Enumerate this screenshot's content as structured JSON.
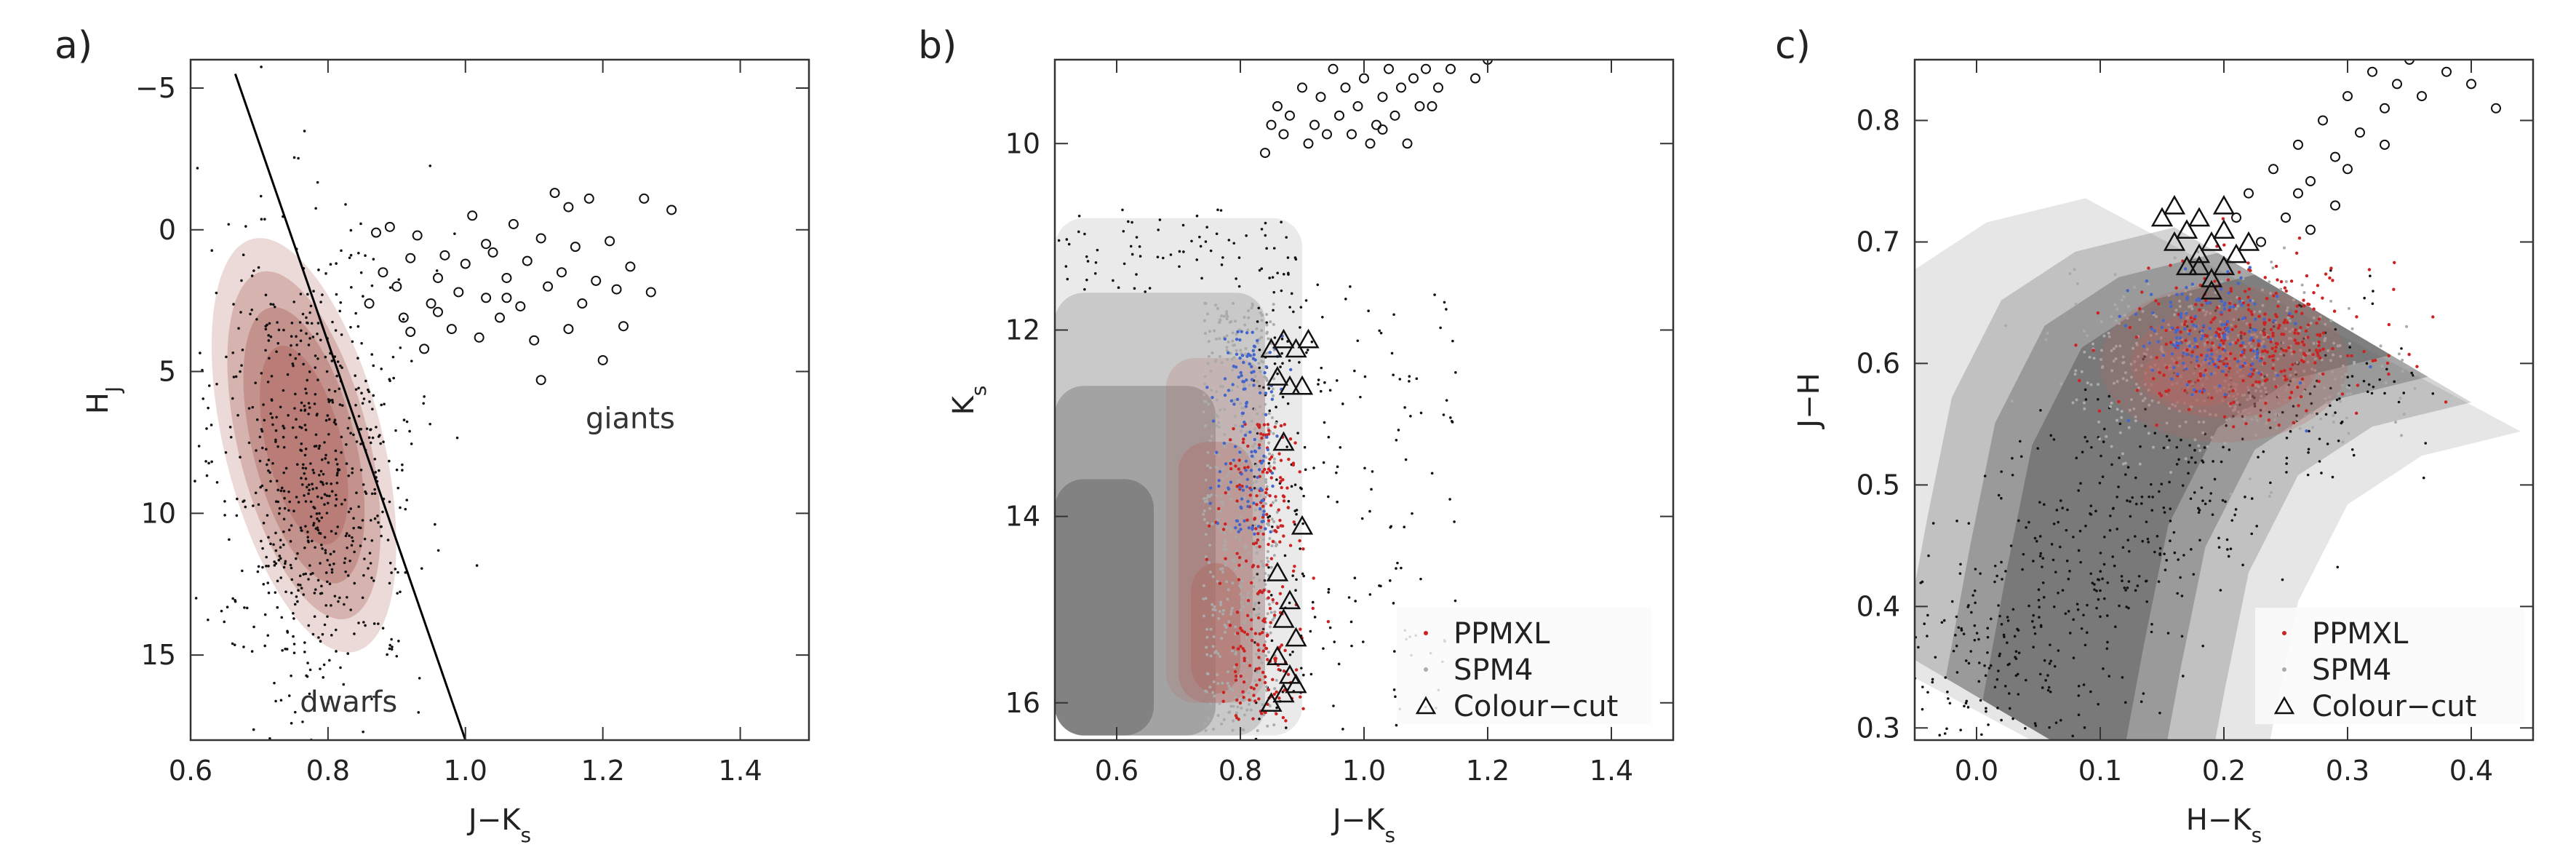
{
  "chart_data": [
    {
      "panel": "a)",
      "type": "scatter",
      "xlabel": "J−K",
      "xlabel_sub": "s",
      "ylabel": "H",
      "ylabel_sub": "J",
      "xlim": [
        0.6,
        1.5
      ],
      "ylim": [
        18,
        -6
      ],
      "y_inverted": true,
      "xticks": [
        0.6,
        0.8,
        1.0,
        1.2,
        1.4
      ],
      "xtick_labels": [
        "0.6",
        "0.8",
        "1.0",
        "1.2",
        "1.4"
      ],
      "yticks": [
        -5,
        0,
        5,
        10,
        15
      ],
      "ytick_labels": [
        "−5",
        "0",
        "5",
        "10",
        "15"
      ],
      "annotations": [
        {
          "text": "giants",
          "x": 1.24,
          "y": 7.0
        },
        {
          "text": "dwarfs",
          "x": 0.83,
          "y": 17.0
        }
      ],
      "dividing_line": {
        "x": [
          0.665,
          1.0
        ],
        "y": [
          -5.5,
          18.0
        ]
      },
      "contours": {
        "color": "#b06a64",
        "levels": [
          {
            "cx": 0.765,
            "cy": 7.6,
            "rx": 0.115,
            "ry": 7.5,
            "opacity": 0.25
          },
          {
            "cx": 0.765,
            "cy": 7.6,
            "rx": 0.095,
            "ry": 6.3,
            "opacity": 0.35
          },
          {
            "cx": 0.765,
            "cy": 7.6,
            "rx": 0.075,
            "ry": 5.0,
            "opacity": 0.45
          },
          {
            "cx": 0.765,
            "cy": 7.6,
            "rx": 0.055,
            "ry": 3.6,
            "opacity": 0.55
          }
        ]
      },
      "giants_points": [
        [
          0.86,
          2.6
        ],
        [
          0.87,
          0.1
        ],
        [
          0.88,
          1.5
        ],
        [
          0.89,
          -0.1
        ],
        [
          0.9,
          2.0
        ],
        [
          0.91,
          3.1
        ],
        [
          0.92,
          1.0
        ],
        [
          0.93,
          0.2
        ],
        [
          0.94,
          4.2
        ],
        [
          0.95,
          2.6
        ],
        [
          0.96,
          1.7
        ],
        [
          0.97,
          0.9
        ],
        [
          0.98,
          3.5
        ],
        [
          0.99,
          2.2
        ],
        [
          1.0,
          1.2
        ],
        [
          1.01,
          -0.5
        ],
        [
          1.02,
          3.8
        ],
        [
          1.03,
          2.4
        ],
        [
          1.04,
          0.8
        ],
        [
          1.05,
          3.1
        ],
        [
          1.06,
          1.7
        ],
        [
          1.07,
          -0.2
        ],
        [
          1.08,
          2.7
        ],
        [
          1.09,
          1.1
        ],
        [
          1.1,
          3.9
        ],
        [
          1.11,
          0.3
        ],
        [
          1.12,
          2.0
        ],
        [
          1.13,
          -1.3
        ],
        [
          1.14,
          1.5
        ],
        [
          1.15,
          3.5
        ],
        [
          1.16,
          0.6
        ],
        [
          1.17,
          2.6
        ],
        [
          1.18,
          -1.1
        ],
        [
          1.19,
          1.8
        ],
        [
          1.2,
          4.6
        ],
        [
          1.21,
          0.4
        ],
        [
          1.22,
          2.1
        ],
        [
          1.24,
          1.3
        ],
        [
          1.26,
          -1.1
        ],
        [
          1.27,
          2.2
        ],
        [
          1.3,
          -0.7
        ],
        [
          1.11,
          5.3
        ],
        [
          0.96,
          2.9
        ],
        [
          1.03,
          0.5
        ],
        [
          0.92,
          3.6
        ],
        [
          1.15,
          -0.8
        ],
        [
          1.06,
          2.4
        ],
        [
          1.23,
          3.4
        ]
      ]
    },
    {
      "panel": "b)",
      "type": "scatter",
      "xlabel": "J−K",
      "xlabel_sub": "s",
      "ylabel": "K",
      "ylabel_sub": "s",
      "xlim": [
        0.5,
        1.5
      ],
      "ylim": [
        16.4,
        9.1
      ],
      "y_inverted": true,
      "xticks": [
        0.6,
        0.8,
        1.0,
        1.2,
        1.4
      ],
      "xtick_labels": [
        "0.6",
        "0.8",
        "1.0",
        "1.2",
        "1.4"
      ],
      "yticks": [
        10,
        12,
        14,
        16
      ],
      "ytick_labels": [
        "10",
        "12",
        "14",
        "16"
      ],
      "legend": [
        {
          "label": "PPMXL",
          "marker": "dot",
          "color": "#cc2222"
        },
        {
          "label": "SPM4",
          "marker": "dot",
          "color": "#aaaaaa"
        },
        {
          "label": "Colour−cut",
          "marker": "triangle",
          "color": "#111111"
        }
      ],
      "grey_contours": {
        "color": "#555555",
        "levels": [
          {
            "x0": 0.5,
            "x1": 0.9,
            "y0": 10.8,
            "y1": 16.35,
            "opacity": 0.12
          },
          {
            "x0": 0.5,
            "x1": 0.84,
            "y0": 11.6,
            "y1": 16.35,
            "opacity": 0.22
          },
          {
            "x0": 0.5,
            "x1": 0.76,
            "y0": 12.6,
            "y1": 16.35,
            "opacity": 0.32
          },
          {
            "x0": 0.5,
            "x1": 0.66,
            "y0": 13.6,
            "y1": 16.35,
            "opacity": 0.42
          }
        ]
      },
      "red_contours": {
        "color": "#b06a64",
        "levels": [
          {
            "x0": 0.68,
            "x1": 0.84,
            "y0": 12.3,
            "y1": 16.0,
            "opacity": 0.22
          },
          {
            "x0": 0.7,
            "x1": 0.82,
            "y0": 13.2,
            "y1": 16.0,
            "opacity": 0.35
          },
          {
            "x0": 0.72,
            "x1": 0.8,
            "y0": 14.5,
            "y1": 15.9,
            "opacity": 0.5
          }
        ]
      },
      "giants_points": [
        [
          0.86,
          9.6
        ],
        [
          0.87,
          9.9
        ],
        [
          0.88,
          9.7
        ],
        [
          0.9,
          9.4
        ],
        [
          0.91,
          10.0
        ],
        [
          0.92,
          9.8
        ],
        [
          0.93,
          9.5
        ],
        [
          0.94,
          9.9
        ],
        [
          0.95,
          9.2
        ],
        [
          0.96,
          9.7
        ],
        [
          0.97,
          9.4
        ],
        [
          0.98,
          9.9
        ],
        [
          0.99,
          9.6
        ],
        [
          1.0,
          9.3
        ],
        [
          1.01,
          10.0
        ],
        [
          1.02,
          9.8
        ],
        [
          1.03,
          9.5
        ],
        [
          1.04,
          9.2
        ],
        [
          1.05,
          9.7
        ],
        [
          1.06,
          9.4
        ],
        [
          1.07,
          10.0
        ],
        [
          1.08,
          9.3
        ],
        [
          1.09,
          9.6
        ],
        [
          1.1,
          9.2
        ],
        [
          1.12,
          9.4
        ],
        [
          1.14,
          9.2
        ],
        [
          1.18,
          9.3
        ],
        [
          0.84,
          10.1
        ],
        [
          0.85,
          9.8
        ],
        [
          1.03,
          9.85
        ],
        [
          1.11,
          9.6
        ],
        [
          1.2,
          9.1
        ]
      ],
      "colour_cut_points": [
        [
          0.85,
          12.2
        ],
        [
          0.87,
          12.1
        ],
        [
          0.89,
          12.2
        ],
        [
          0.91,
          12.1
        ],
        [
          0.86,
          12.5
        ],
        [
          0.88,
          12.6
        ],
        [
          0.9,
          12.6
        ],
        [
          0.87,
          13.2
        ],
        [
          0.86,
          14.6
        ],
        [
          0.88,
          14.9
        ],
        [
          0.87,
          15.1
        ],
        [
          0.89,
          15.3
        ],
        [
          0.86,
          15.5
        ],
        [
          0.88,
          15.7
        ],
        [
          0.87,
          15.9
        ],
        [
          0.89,
          15.8
        ],
        [
          0.85,
          16.0
        ],
        [
          0.9,
          14.1
        ]
      ]
    },
    {
      "panel": "c)",
      "type": "scatter",
      "xlabel": "H−K",
      "xlabel_sub": "s",
      "ylabel": "J−H",
      "xlim": [
        -0.05,
        0.45
      ],
      "ylim": [
        0.29,
        0.85
      ],
      "xticks": [
        0.0,
        0.1,
        0.2,
        0.3,
        0.4
      ],
      "xtick_labels": [
        "0.0",
        "0.1",
        "0.2",
        "0.3",
        "0.4"
      ],
      "yticks": [
        0.3,
        0.4,
        0.5,
        0.6,
        0.7,
        0.8
      ],
      "ytick_labels": [
        "0.3",
        "0.4",
        "0.5",
        "0.6",
        "0.7",
        "0.8"
      ],
      "legend": [
        {
          "label": "PPMXL",
          "marker": "dot",
          "color": "#cc2222"
        },
        {
          "label": "SPM4",
          "marker": "dot",
          "color": "#aaaaaa"
        },
        {
          "label": "Colour−cut",
          "marker": "triangle",
          "color": "#111111"
        }
      ],
      "grey_contour_color": "#555555",
      "red_contour_color": "#b06a64",
      "giants_points": [
        [
          0.22,
          0.74
        ],
        [
          0.24,
          0.76
        ],
        [
          0.26,
          0.78
        ],
        [
          0.27,
          0.75
        ],
        [
          0.28,
          0.8
        ],
        [
          0.29,
          0.77
        ],
        [
          0.3,
          0.82
        ],
        [
          0.31,
          0.79
        ],
        [
          0.32,
          0.84
        ],
        [
          0.33,
          0.81
        ],
        [
          0.34,
          0.83
        ],
        [
          0.35,
          0.85
        ],
        [
          0.36,
          0.82
        ],
        [
          0.38,
          0.84
        ],
        [
          0.4,
          0.83
        ],
        [
          0.42,
          0.81
        ],
        [
          0.25,
          0.72
        ],
        [
          0.27,
          0.71
        ],
        [
          0.29,
          0.73
        ],
        [
          0.23,
          0.7
        ],
        [
          0.26,
          0.74
        ],
        [
          0.3,
          0.76
        ],
        [
          0.33,
          0.78
        ],
        [
          0.21,
          0.72
        ]
      ],
      "colour_cut_points": [
        [
          0.15,
          0.72
        ],
        [
          0.16,
          0.7
        ],
        [
          0.17,
          0.71
        ],
        [
          0.18,
          0.69
        ],
        [
          0.19,
          0.7
        ],
        [
          0.2,
          0.71
        ],
        [
          0.21,
          0.69
        ],
        [
          0.17,
          0.68
        ],
        [
          0.19,
          0.67
        ],
        [
          0.2,
          0.68
        ],
        [
          0.18,
          0.72
        ],
        [
          0.22,
          0.7
        ],
        [
          0.16,
          0.73
        ],
        [
          0.2,
          0.73
        ],
        [
          0.18,
          0.68
        ],
        [
          0.19,
          0.66
        ]
      ]
    }
  ]
}
